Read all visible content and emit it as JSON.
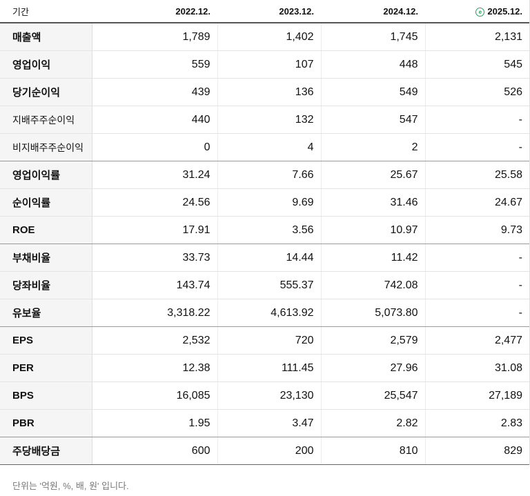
{
  "header": {
    "label": "기간",
    "periods": [
      "2022.12.",
      "2023.12.",
      "2024.12.",
      "2025.12."
    ],
    "estimate_icon": "ⓔ"
  },
  "rows": [
    {
      "label": "매출액",
      "values": [
        "1,789",
        "1,402",
        "1,745",
        "2,131"
      ]
    },
    {
      "label": "영업이익",
      "values": [
        "559",
        "107",
        "448",
        "545"
      ]
    },
    {
      "label": "당기순이익",
      "values": [
        "439",
        "136",
        "549",
        "526"
      ]
    },
    {
      "label": "지배주주순이익",
      "values": [
        "440",
        "132",
        "547",
        "-"
      ]
    },
    {
      "label": "비지배주주순이익",
      "values": [
        "0",
        "4",
        "2",
        "-"
      ]
    },
    {
      "label": "영업이익률",
      "values": [
        "31.24",
        "7.66",
        "25.67",
        "25.58"
      ]
    },
    {
      "label": "순이익률",
      "values": [
        "24.56",
        "9.69",
        "31.46",
        "24.67"
      ]
    },
    {
      "label": "ROE",
      "values": [
        "17.91",
        "3.56",
        "10.97",
        "9.73"
      ]
    },
    {
      "label": "부채비율",
      "values": [
        "33.73",
        "14.44",
        "11.42",
        "-"
      ]
    },
    {
      "label": "당좌비율",
      "values": [
        "143.74",
        "555.37",
        "742.08",
        "-"
      ]
    },
    {
      "label": "유보율",
      "values": [
        "3,318.22",
        "4,613.92",
        "5,073.80",
        "-"
      ]
    },
    {
      "label": "EPS",
      "values": [
        "2,532",
        "720",
        "2,579",
        "2,477"
      ]
    },
    {
      "label": "PER",
      "values": [
        "12.38",
        "111.45",
        "27.96",
        "31.08"
      ]
    },
    {
      "label": "BPS",
      "values": [
        "16,085",
        "23,130",
        "25,547",
        "27,189"
      ]
    },
    {
      "label": "PBR",
      "values": [
        "1.95",
        "3.47",
        "2.82",
        "2.83"
      ]
    },
    {
      "label": "주당배당금",
      "values": [
        "600",
        "200",
        "810",
        "829"
      ]
    }
  ],
  "footer": {
    "note": "단위는 '억원, %, 배, 원' 입니다."
  }
}
